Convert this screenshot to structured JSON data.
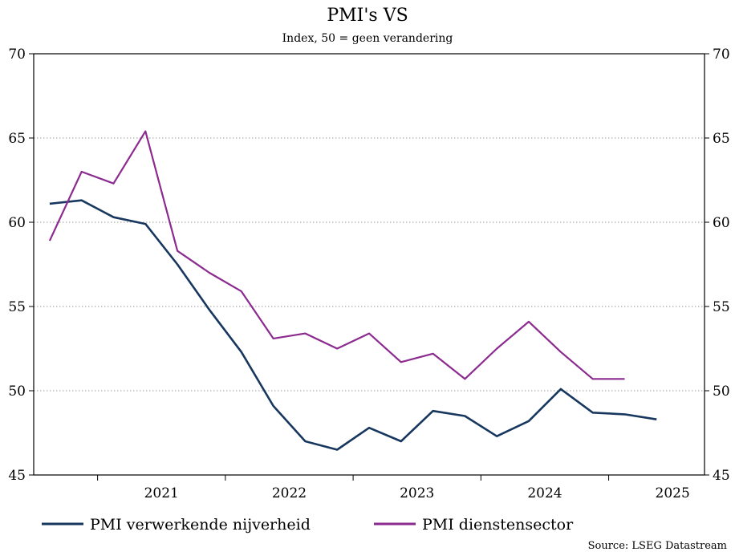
{
  "chart_data": {
    "type": "line",
    "title": "PMI's VS",
    "subtitle": "Index, 50 = geen verandering",
    "ylim": [
      45,
      70
    ],
    "yticks": [
      45,
      50,
      55,
      60,
      65,
      70
    ],
    "grid": true,
    "x_categories": [
      "2021",
      "2022",
      "2023",
      "2024",
      "2025"
    ],
    "x_start": 2020.5,
    "x_end": 2025.75,
    "series": [
      {
        "name": "PMI verwerkende nijverheid",
        "color": "#17375e",
        "x": [
          2020.625,
          2020.875,
          2021.125,
          2021.375,
          2021.625,
          2021.875,
          2022.125,
          2022.375,
          2022.625,
          2022.875,
          2023.125,
          2023.375,
          2023.625,
          2023.875,
          2024.125,
          2024.375,
          2024.625,
          2024.875,
          2025.125,
          2025.375
        ],
        "values": [
          61.1,
          61.3,
          60.3,
          59.9,
          57.5,
          54.8,
          52.3,
          49.1,
          47.0,
          46.5,
          47.8,
          47.0,
          48.8,
          48.5,
          47.3,
          48.2,
          50.1,
          48.7,
          48.6,
          48.3
        ]
      },
      {
        "name": "PMI dienstensector",
        "color": "#8b2a8f",
        "x": [
          2020.625,
          2020.875,
          2021.125,
          2021.375,
          2021.625,
          2021.875,
          2022.125,
          2022.375,
          2022.625,
          2022.875,
          2023.125,
          2023.375,
          2023.625,
          2023.875,
          2024.125,
          2024.375,
          2024.625,
          2024.875,
          2025.125
        ],
        "values": [
          58.9,
          63.0,
          62.3,
          65.4,
          58.3,
          57.0,
          55.9,
          53.1,
          53.4,
          52.5,
          53.4,
          51.7,
          52.2,
          50.7,
          52.5,
          54.1,
          52.3,
          50.7,
          50.7
        ]
      }
    ],
    "legend_position": "bottom"
  },
  "source": "Source: LSEG Datastream"
}
